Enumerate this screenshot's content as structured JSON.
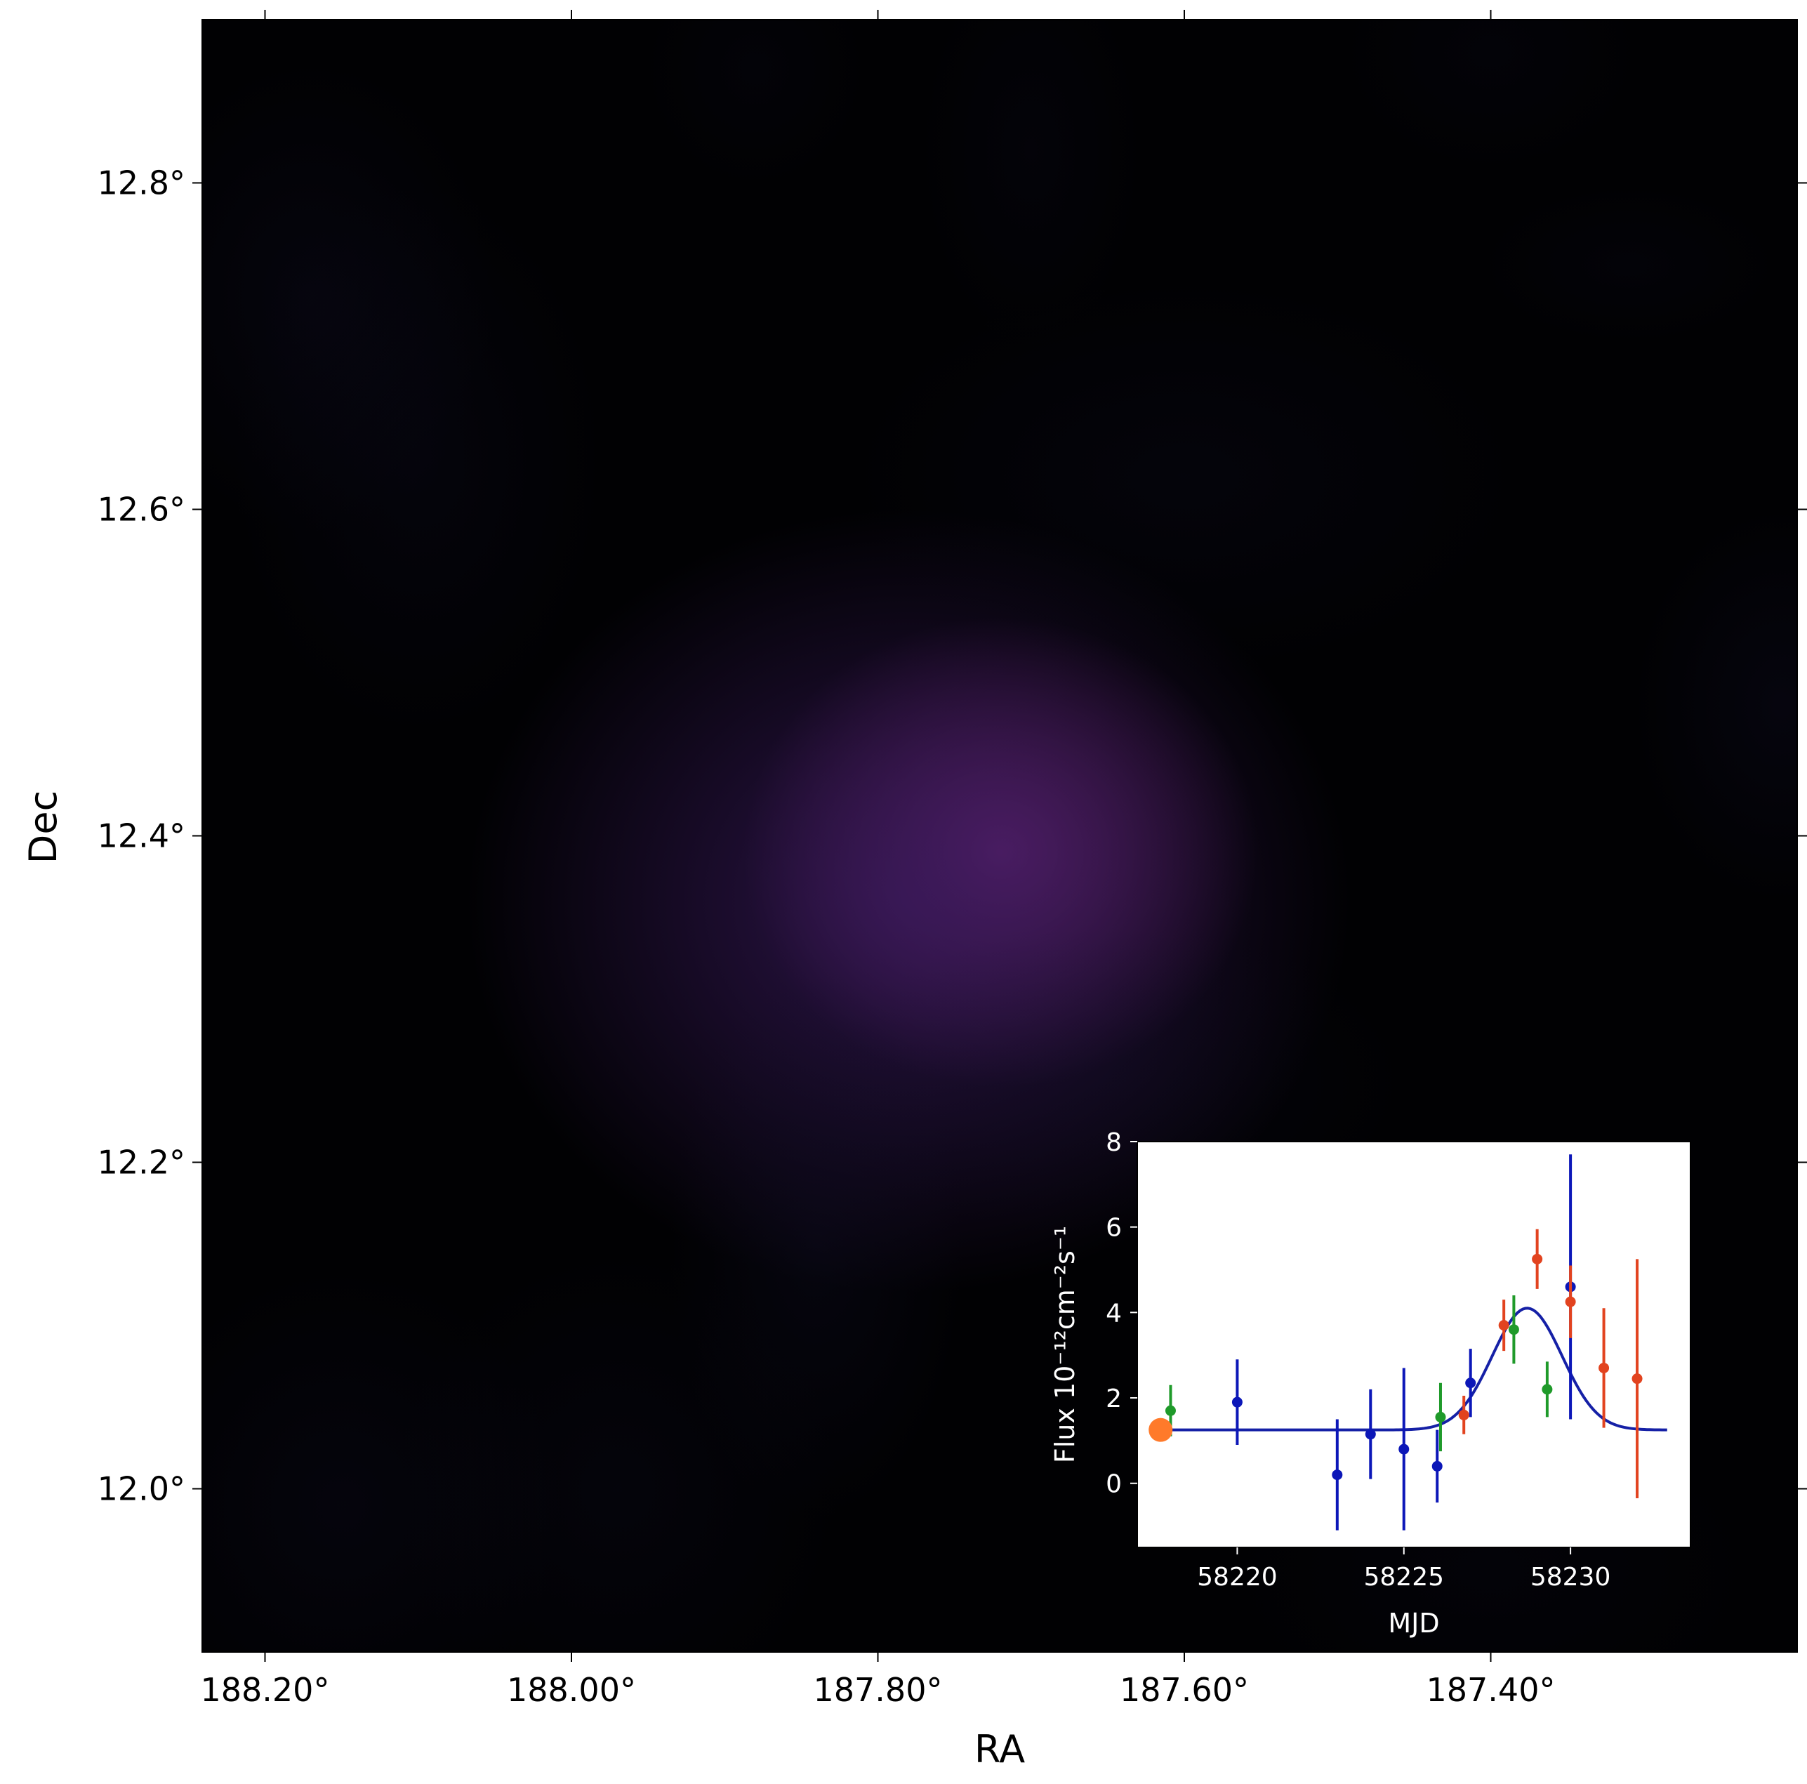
{
  "chart_data": [
    {
      "type": "heatmap",
      "xlabel": "RA",
      "ylabel": "Dec",
      "x_ticks": [
        {
          "value": 188.2,
          "label": "188.20°"
        },
        {
          "value": 188.0,
          "label": "188.00°"
        },
        {
          "value": 187.8,
          "label": "187.80°"
        },
        {
          "value": 187.6,
          "label": "187.60°"
        },
        {
          "value": 187.4,
          "label": "187.40°"
        }
      ],
      "y_ticks": [
        {
          "value": 12.8,
          "label": "12.8°"
        },
        {
          "value": 12.6,
          "label": "12.6°"
        },
        {
          "value": 12.4,
          "label": "12.4°"
        },
        {
          "value": 12.2,
          "label": "12.2°"
        },
        {
          "value": 12.0,
          "label": "12.0°"
        }
      ],
      "xlim": [
        188.241,
        187.2
      ],
      "ylim": [
        11.9,
        12.9
      ],
      "colors": {
        "background": "#010103",
        "peak": "#5c1f66",
        "faint": "#12102a"
      },
      "blobs": [
        {
          "ra": 187.72,
          "dec": 12.39,
          "sigma_ra": 0.07,
          "sigma_dec": 0.06,
          "intensity": 1.0
        },
        {
          "ra": 187.78,
          "dec": 12.36,
          "sigma_ra": 0.12,
          "sigma_dec": 0.1,
          "intensity": 0.35
        },
        {
          "ra": 187.84,
          "dec": 12.15,
          "sigma_ra": 0.04,
          "sigma_dec": 0.07,
          "intensity": 0.14
        },
        {
          "ra": 187.65,
          "dec": 12.25,
          "sigma_ra": 0.08,
          "sigma_dec": 0.04,
          "intensity": 0.1
        },
        {
          "ra": 188.17,
          "dec": 12.73,
          "sigma_ra": 0.05,
          "sigma_dec": 0.06,
          "intensity": 0.12
        },
        {
          "ra": 188.1,
          "dec": 12.63,
          "sigma_ra": 0.05,
          "sigma_dec": 0.07,
          "intensity": 0.1
        },
        {
          "ra": 187.6,
          "dec": 12.62,
          "sigma_ra": 0.09,
          "sigma_dec": 0.05,
          "intensity": 0.09
        },
        {
          "ra": 187.7,
          "dec": 12.82,
          "sigma_ra": 0.03,
          "sigma_dec": 0.05,
          "intensity": 0.07
        },
        {
          "ra": 187.88,
          "dec": 12.87,
          "sigma_ra": 0.03,
          "sigma_dec": 0.03,
          "intensity": 0.06
        },
        {
          "ra": 187.4,
          "dec": 12.88,
          "sigma_ra": 0.04,
          "sigma_dec": 0.03,
          "intensity": 0.06
        },
        {
          "ra": 187.31,
          "dec": 12.75,
          "sigma_ra": 0.04,
          "sigma_dec": 0.02,
          "intensity": 0.06
        },
        {
          "ra": 187.21,
          "dec": 12.48,
          "sigma_ra": 0.04,
          "sigma_dec": 0.05,
          "intensity": 0.13
        },
        {
          "ra": 188.15,
          "dec": 11.99,
          "sigma_ra": 0.06,
          "sigma_dec": 0.06,
          "intensity": 0.11
        },
        {
          "ra": 187.97,
          "dec": 12.0,
          "sigma_ra": 0.06,
          "sigma_dec": 0.06,
          "intensity": 0.09
        },
        {
          "ra": 187.4,
          "dec": 11.95,
          "sigma_ra": 0.07,
          "sigma_dec": 0.04,
          "intensity": 0.06
        }
      ]
    },
    {
      "type": "scatter",
      "xlabel": "MJD",
      "ylabel": "Flux 10⁻¹²cm⁻²s⁻¹",
      "xlim": [
        58217.0,
        58233.6
      ],
      "ylim": [
        -1.5,
        8.0
      ],
      "x_ticks": [
        58220,
        58225,
        58230
      ],
      "y_ticks": [
        0,
        2,
        4,
        6,
        8
      ],
      "series": [
        {
          "color": "#0c17b8",
          "points": [
            {
              "x": 58220.0,
              "y": 1.9,
              "err": 1.0
            },
            {
              "x": 58223.0,
              "y": 0.2,
              "err": 1.3
            },
            {
              "x": 58224.0,
              "y": 1.15,
              "err": 1.05
            },
            {
              "x": 58225.0,
              "y": 0.8,
              "err": 1.9
            },
            {
              "x": 58226.0,
              "y": 0.4,
              "err": 0.85
            },
            {
              "x": 58227.0,
              "y": 2.35,
              "err": 0.8
            },
            {
              "x": 58230.0,
              "y": 4.6,
              "err": 3.1
            }
          ]
        },
        {
          "color": "#1f9a2a",
          "points": [
            {
              "x": 58218.0,
              "y": 1.7,
              "err": 0.6
            },
            {
              "x": 58226.1,
              "y": 1.55,
              "err": 0.8
            },
            {
              "x": 58228.3,
              "y": 3.6,
              "err": 0.8
            },
            {
              "x": 58229.3,
              "y": 2.2,
              "err": 0.65
            }
          ]
        },
        {
          "color": "#e2431f",
          "points": [
            {
              "x": 58226.8,
              "y": 1.6,
              "err": 0.45
            },
            {
              "x": 58228.0,
              "y": 3.7,
              "err": 0.6
            },
            {
              "x": 58229.0,
              "y": 5.25,
              "err": 0.7
            },
            {
              "x": 58230.0,
              "y": 4.25,
              "err": 0.85
            },
            {
              "x": 58231.0,
              "y": 2.7,
              "err": 1.4
            },
            {
              "x": 58232.0,
              "y": 2.45,
              "err": 2.8
            }
          ]
        }
      ],
      "fit_curve": {
        "color": "#1520a6",
        "baseline": 1.25,
        "amplitude": 2.85,
        "center": 58228.7,
        "sigma": 1.05,
        "x_range": [
          58217.7,
          58232.9
        ]
      },
      "reference_point": {
        "x": 58217.7,
        "y": 1.25,
        "color": "#ff7a2a"
      }
    }
  ]
}
